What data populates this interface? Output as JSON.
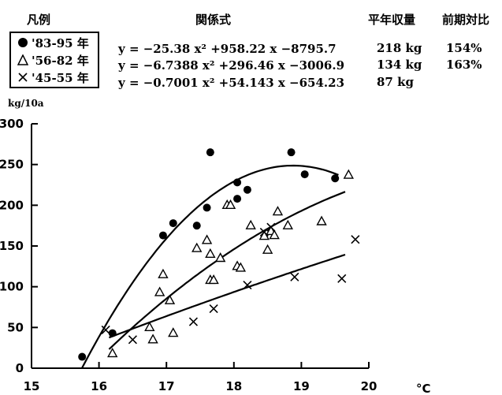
{
  "header": {
    "legend": "凡例",
    "formula": "関係式",
    "avg": "平年収量",
    "ratio": "前期対比"
  },
  "legend": {
    "items": [
      {
        "label": "'83-95 年",
        "marker": "filled-circle"
      },
      {
        "label": "'56-82 年",
        "marker": "triangle"
      },
      {
        "label": "'45-55 年",
        "marker": "cross"
      }
    ]
  },
  "formulas": [
    {
      "eq": "y = −25.38 x² +958.22 x −8795.7",
      "avg": "218 kg",
      "ratio": "154%"
    },
    {
      "eq": "y = −6.7388 x² +296.46 x −3006.9",
      "avg": "134 kg",
      "ratio": "163%"
    },
    {
      "eq": "y = −0.7001 x² +54.143 x −654.23",
      "avg": "87 kg",
      "ratio": ""
    }
  ],
  "axis": {
    "y_unit": "kg/10a",
    "x_unit": "°C"
  },
  "chart_data": {
    "type": "scatter",
    "xlim": [
      15,
      20
    ],
    "ylim": [
      0,
      300
    ],
    "x_ticks": [
      15,
      16,
      17,
      18,
      19,
      20
    ],
    "y_ticks": [
      0,
      50,
      100,
      150,
      200,
      250,
      300
    ],
    "series": [
      {
        "name": "'83-95 年",
        "marker": "filled-circle",
        "points": [
          [
            15.75,
            14
          ],
          [
            16.2,
            43
          ],
          [
            16.95,
            163
          ],
          [
            17.1,
            178
          ],
          [
            17.45,
            175
          ],
          [
            17.6,
            197
          ],
          [
            17.65,
            265
          ],
          [
            18.05,
            228
          ],
          [
            18.05,
            208
          ],
          [
            18.2,
            219
          ],
          [
            18.85,
            265
          ],
          [
            19.05,
            238
          ],
          [
            19.5,
            233
          ]
        ],
        "fit": [
          -25.38,
          958.22,
          -8795.7
        ],
        "fit_range": [
          15.75,
          19.55
        ]
      },
      {
        "name": "'56-82 年",
        "marker": "triangle",
        "points": [
          [
            16.2,
            18
          ],
          [
            16.75,
            50
          ],
          [
            16.8,
            35
          ],
          [
            16.9,
            93
          ],
          [
            16.95,
            115
          ],
          [
            17.05,
            83
          ],
          [
            17.1,
            43
          ],
          [
            17.45,
            147
          ],
          [
            17.6,
            157
          ],
          [
            17.65,
            140
          ],
          [
            17.65,
            108
          ],
          [
            17.7,
            108
          ],
          [
            17.8,
            135
          ],
          [
            17.9,
            200
          ],
          [
            17.95,
            200
          ],
          [
            18.05,
            125
          ],
          [
            18.1,
            123
          ],
          [
            18.25,
            175
          ],
          [
            18.45,
            162
          ],
          [
            18.5,
            145
          ],
          [
            18.55,
            168
          ],
          [
            18.6,
            163
          ],
          [
            18.65,
            192
          ],
          [
            18.8,
            175
          ],
          [
            19.3,
            180
          ],
          [
            19.7,
            237
          ]
        ],
        "fit": [
          -6.7388,
          296.46,
          -3006.9
        ],
        "fit_range": [
          16.15,
          19.65
        ]
      },
      {
        "name": "'45-55 年",
        "marker": "cross",
        "points": [
          [
            16.1,
            47
          ],
          [
            16.5,
            35
          ],
          [
            17.4,
            57
          ],
          [
            17.7,
            73
          ],
          [
            18.2,
            102
          ],
          [
            18.45,
            167
          ],
          [
            18.55,
            173
          ],
          [
            18.9,
            112
          ],
          [
            19.6,
            110
          ],
          [
            19.8,
            158
          ]
        ],
        "fit": [
          -0.7001,
          54.143,
          -654.23
        ],
        "fit_range": [
          16.15,
          19.65
        ]
      }
    ]
  }
}
